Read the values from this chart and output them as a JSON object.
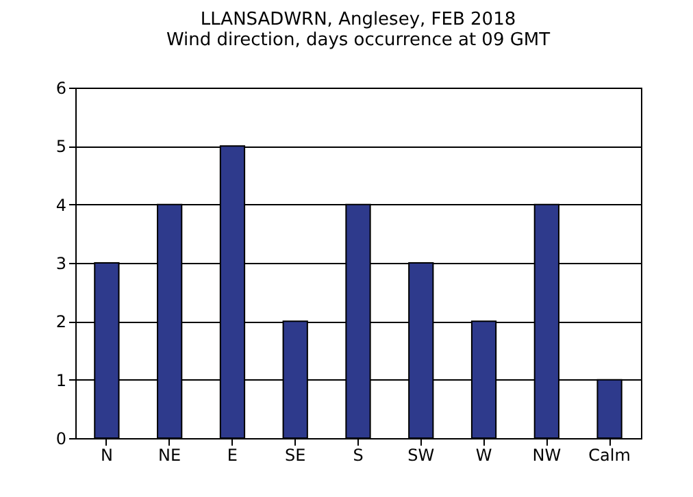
{
  "chart_data": {
    "type": "bar",
    "title": "LLANSADWRN, Anglesey, FEB 2018",
    "subtitle": "Wind direction, days occurrence at 09 GMT",
    "categories": [
      "N",
      "NE",
      "E",
      "SE",
      "S",
      "SW",
      "W",
      "NW",
      "Calm"
    ],
    "values": [
      3,
      4,
      5,
      2,
      4,
      3,
      2,
      4,
      1
    ],
    "color": "#2e3a8c",
    "ylim": [
      0,
      6
    ],
    "yticks": [
      0,
      1,
      2,
      3,
      4,
      5,
      6
    ],
    "grid": "y"
  }
}
